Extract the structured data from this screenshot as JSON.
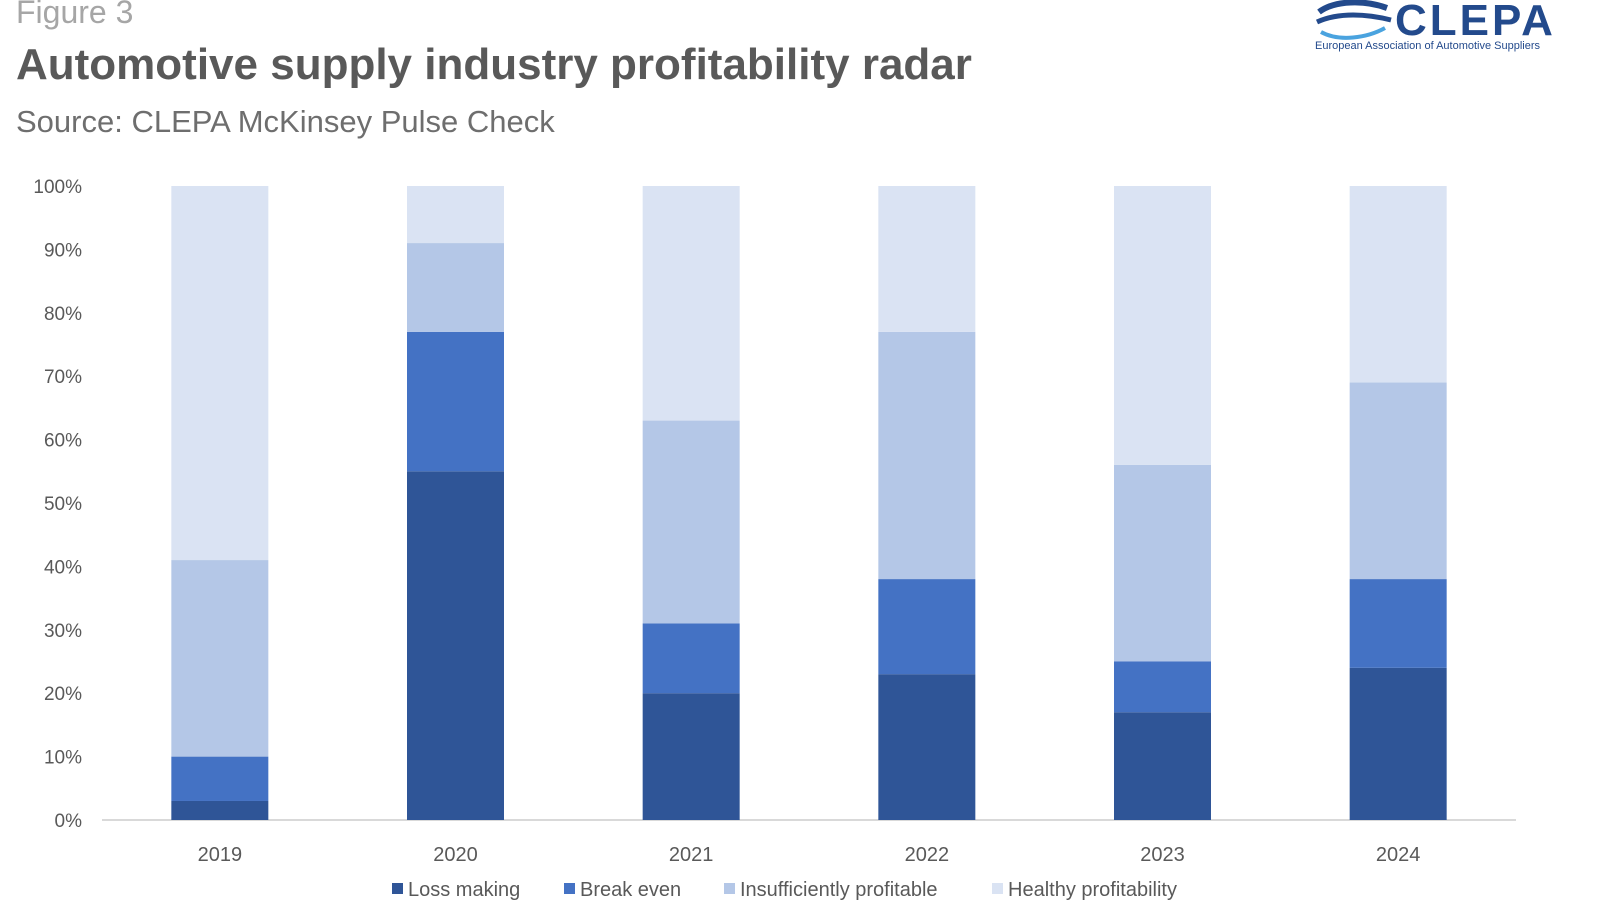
{
  "header": {
    "figure_label": "Figure 3",
    "title": "Automotive supply industry profitability radar",
    "subtitle": "Source: CLEPA McKinsey Pulse Check"
  },
  "logo": {
    "wordmark": "CLEPA",
    "tagline": "European Association of Automotive Suppliers",
    "color": "#234a8c"
  },
  "chart_data": {
    "type": "bar",
    "stacked": true,
    "categories": [
      "2019",
      "2020",
      "2021",
      "2022",
      "2023",
      "2024"
    ],
    "ylim": [
      0,
      100
    ],
    "yticks": [
      "0%",
      "10%",
      "20%",
      "30%",
      "40%",
      "50%",
      "60%",
      "70%",
      "80%",
      "90%",
      "100%"
    ],
    "legend_position": "bottom",
    "grid": false,
    "series": [
      {
        "name": "Loss making",
        "color": "#2f5597",
        "values": [
          3,
          55,
          20,
          23,
          17,
          24
        ]
      },
      {
        "name": "Break even",
        "color": "#4472c4",
        "values": [
          7,
          22,
          11,
          15,
          8,
          14
        ]
      },
      {
        "name": "Insufficiently profitable",
        "color": "#b4c7e7",
        "values": [
          31,
          14,
          32,
          39,
          31,
          31
        ]
      },
      {
        "name": "Healthy profitability",
        "color": "#dae3f3",
        "values": [
          59,
          9,
          37,
          23,
          44,
          31
        ]
      }
    ]
  }
}
